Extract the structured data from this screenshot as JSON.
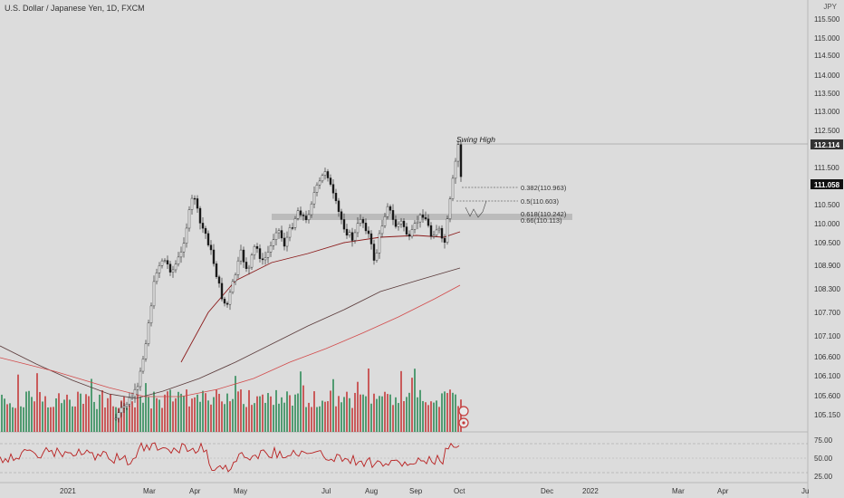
{
  "header": {
    "symbol_title": "U.S. Dollar / Japanese Yen, 1D, FXCM",
    "currency_label": "JPY"
  },
  "price_axis": {
    "labels": [
      "115.500",
      "115.000",
      "114.500",
      "114.000",
      "113.500",
      "113.000",
      "112.500",
      "111.500",
      "110.500",
      "110.000",
      "109.500",
      "108.900",
      "108.300",
      "107.700",
      "107.100",
      "106.600",
      "106.100",
      "105.600",
      "105.150"
    ]
  },
  "price_badges": {
    "swing_high": "112.114",
    "current": "111.058"
  },
  "annotations": {
    "swing_high": "Swing High",
    "fib_0382": "0.382(110.963)",
    "fib_05": "0.5(110.603)",
    "fib_0618": "0.618(110.242)",
    "fib_066": "0.66(110.113)"
  },
  "rsi_axis": {
    "labels": [
      "75.00",
      "50.00",
      "25.00"
    ]
  },
  "time_axis": {
    "labels": [
      "2021",
      "Mar",
      "Apr",
      "May",
      "Jul",
      "Aug",
      "Sep",
      "Oct",
      "Dec",
      "2022",
      "Mar",
      "Apr",
      "Ju"
    ]
  },
  "colors": {
    "background": "#dcdcdc",
    "candle": "#1a1a1a",
    "ema_short": "#8b1a1a",
    "ema_mid": "#5a3a3a",
    "ema_long": "#d24a4a",
    "volume_up": "#2e8b57",
    "volume_down": "#c43b3b",
    "rsi": "#b81f1f",
    "zone": "#b0b0b0"
  }
}
